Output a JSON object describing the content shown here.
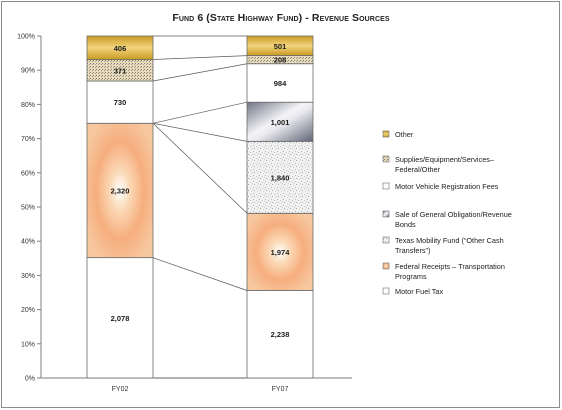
{
  "chart_data": {
    "type": "bar",
    "stacked": "100%",
    "title": "Fund 6 (State Highway Fund) - Revenue Sources",
    "categories": [
      "FY02",
      "FY07"
    ],
    "ylim": [
      0,
      100
    ],
    "yticks": [
      "0%",
      "10%",
      "20%",
      "30%",
      "40%",
      "50%",
      "60%",
      "70%",
      "80%",
      "90%",
      "100%"
    ],
    "series": [
      {
        "name": "Motor Fuel Tax",
        "values": [
          2078,
          2238
        ],
        "color": "#ffffff",
        "fill": "plain"
      },
      {
        "name": "Federal Receipts – Transportation Programs",
        "values": [
          2320,
          1974
        ],
        "color": "#f3a66b",
        "fill": "radial"
      },
      {
        "name": "Texas Mobility Fund (“Other Cash Transfers”)",
        "values": [
          0,
          1840
        ],
        "color": "#e8e8e8",
        "fill": "speckle"
      },
      {
        "name": "Sale of General Obligation/Revenue Bonds",
        "values": [
          0,
          1001
        ],
        "color": "#8a8fa0",
        "fill": "metal"
      },
      {
        "name": "Motor Vehicle Registration Fees",
        "values": [
          730,
          984
        ],
        "color": "#ffffff",
        "fill": "plain"
      },
      {
        "name": "Supplies/Equipment/Services– Federal/Other",
        "values": [
          371,
          208
        ],
        "color": "#d8cdb4",
        "fill": "dots"
      },
      {
        "name": "Other",
        "values": [
          406,
          501
        ],
        "color": "#d4ad3c",
        "fill": "gold"
      }
    ],
    "legend_order": [
      6,
      5,
      4,
      3,
      2,
      1,
      0
    ],
    "legend_position": "right",
    "grid": false
  }
}
